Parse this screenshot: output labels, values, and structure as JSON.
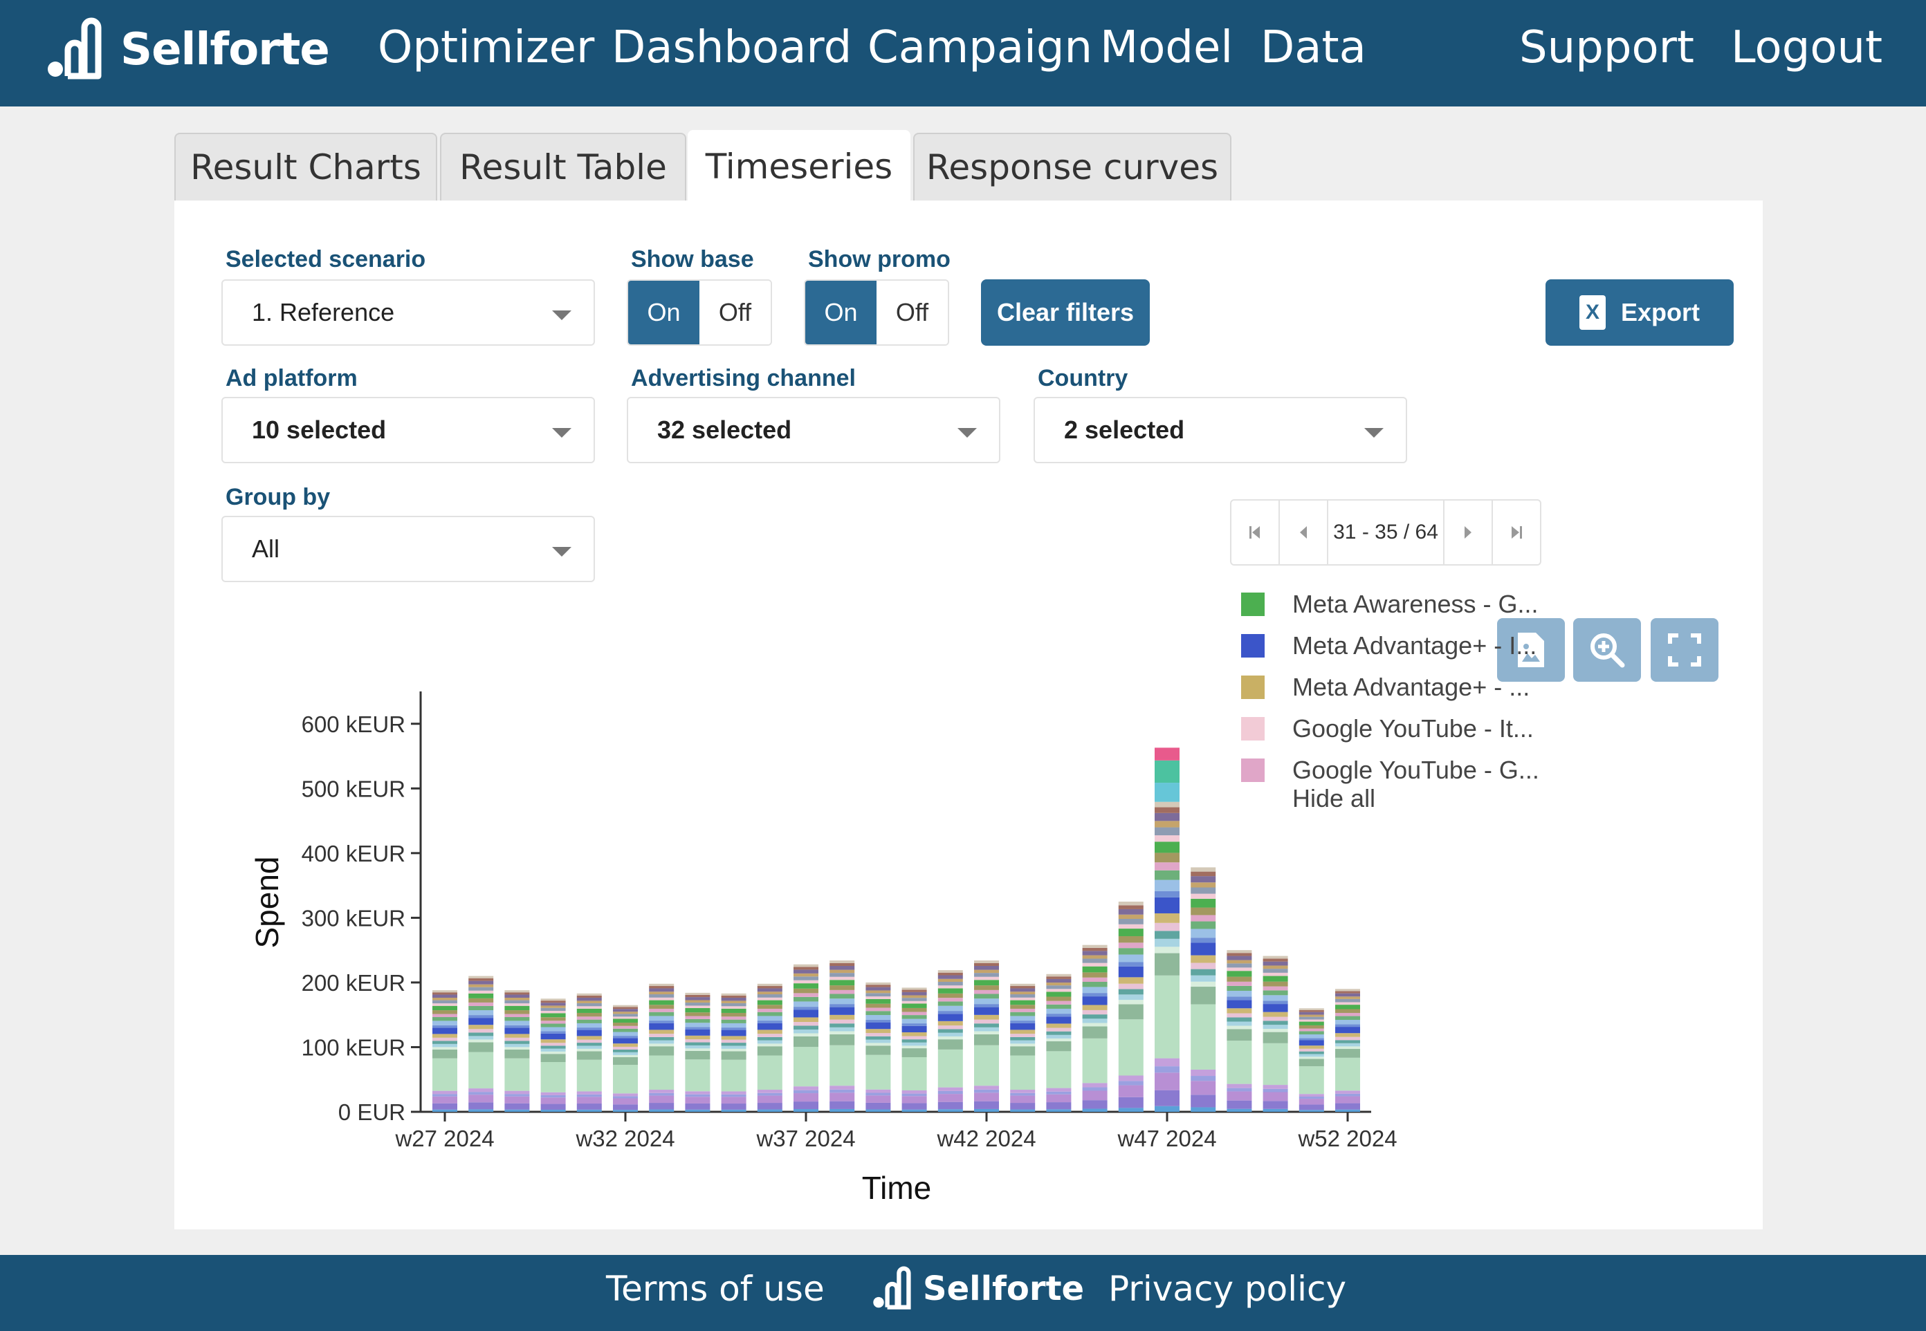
{
  "header": {
    "brand": "Sellforte",
    "nav": [
      "Optimizer",
      "Dashboard",
      "Campaign",
      "Model",
      "Data"
    ],
    "support": "Support",
    "logout": "Logout"
  },
  "tabs": [
    "Result Charts",
    "Result Table",
    "Timeseries",
    "Response curves"
  ],
  "active_tab": "Timeseries",
  "filters": {
    "scenario_label": "Selected scenario",
    "scenario_value": "1. Reference",
    "show_base_label": "Show base",
    "show_promo_label": "Show promo",
    "on": "On",
    "off": "Off",
    "clear_filters": "Clear filters",
    "export": "Export",
    "ad_platform_label": "Ad platform",
    "ad_platform_value": "10 selected",
    "channel_label": "Advertising channel",
    "channel_value": "32 selected",
    "country_label": "Country",
    "country_value": "2 selected",
    "group_by_label": "Group by",
    "group_by_value": "All"
  },
  "legend": {
    "pager": "31 - 35 / 64",
    "items": [
      {
        "label": "Meta Awareness - G...",
        "color": "#4caf50"
      },
      {
        "label": "Meta Advantage+ - I...",
        "color": "#3b55c9"
      },
      {
        "label": "Meta Advantage+ - ...",
        "color": "#c9b064"
      },
      {
        "label": "Google YouTube - It...",
        "color": "#f2cbd6"
      },
      {
        "label": "Google YouTube - G...",
        "color": "#e0a6c8"
      }
    ],
    "hide_all": "Hide all"
  },
  "chart_data": {
    "type": "bar",
    "stacked": true,
    "xlabel": "Time",
    "ylabel": "Spend",
    "ylim": [
      0,
      650
    ],
    "y_ticks": [
      {
        "value": 0,
        "label": "0 EUR"
      },
      {
        "value": 100,
        "label": "100 kEUR"
      },
      {
        "value": 200,
        "label": "200 kEUR"
      },
      {
        "value": 300,
        "label": "300 kEUR"
      },
      {
        "value": 400,
        "label": "400 kEUR"
      },
      {
        "value": 500,
        "label": "500 kEUR"
      },
      {
        "value": 600,
        "label": "600 kEUR"
      }
    ],
    "x_tick_labels": [
      "w27 2024",
      "w32 2024",
      "w37 2024",
      "w42 2024",
      "w47 2024",
      "w52 2024"
    ],
    "categories": [
      "w27 2024",
      "w28 2024",
      "w29 2024",
      "w30 2024",
      "w31 2024",
      "w32 2024",
      "w33 2024",
      "w34 2024",
      "w35 2024",
      "w36 2024",
      "w37 2024",
      "w38 2024",
      "w39 2024",
      "w40 2024",
      "w41 2024",
      "w42 2024",
      "w43 2024",
      "w44 2024",
      "w45 2024",
      "w46 2024",
      "w47 2024",
      "w48 2024",
      "w49 2024",
      "w50 2024",
      "w51 2024",
      "w52 2024"
    ],
    "totals_keur": [
      188,
      210,
      188,
      175,
      183,
      165,
      198,
      184,
      183,
      198,
      228,
      234,
      200,
      192,
      219,
      234,
      198,
      213,
      258,
      325,
      563,
      378,
      250,
      241,
      160,
      190
    ]
  }
}
